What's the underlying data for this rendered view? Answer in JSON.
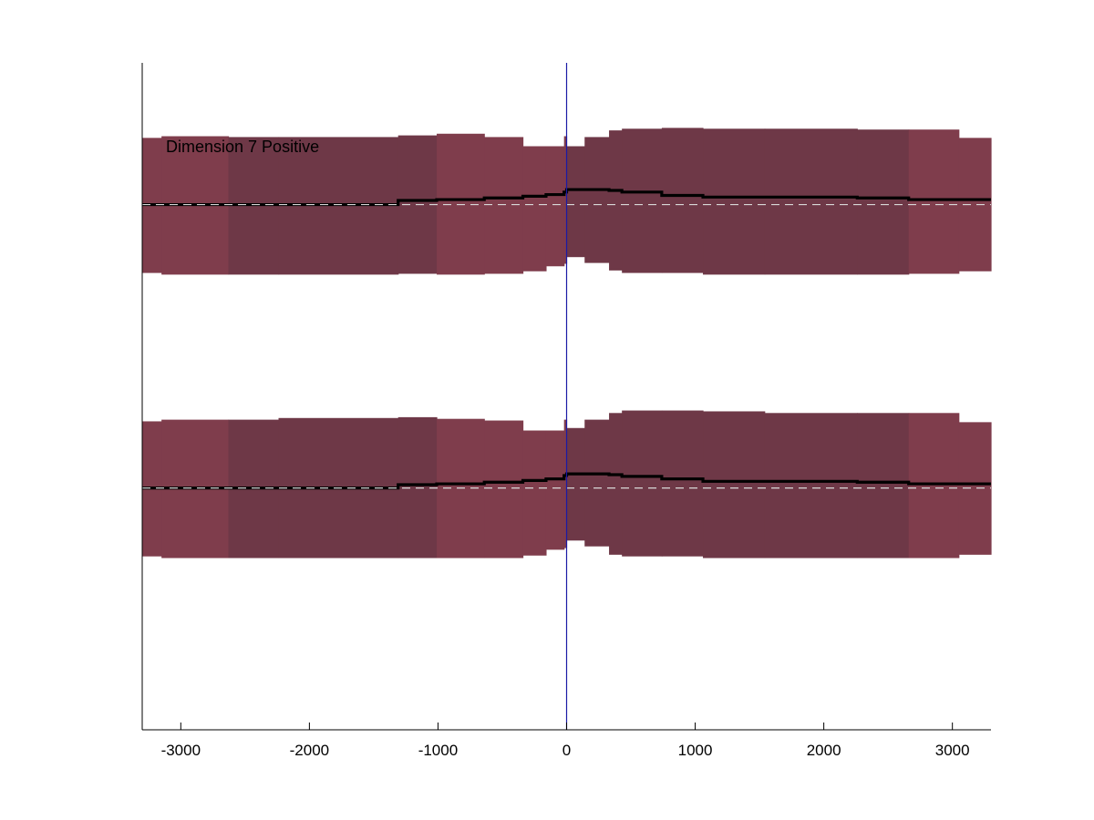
{
  "chart_data": {
    "type": "area",
    "annotation": "Dimension 7 Positive",
    "xlabel": "",
    "ylabel": "",
    "xlim": [
      -3300,
      3300
    ],
    "ylim": [
      -1.0,
      7.0
    ],
    "grid": false,
    "x_ticks": [
      -3000,
      -2000,
      -1000,
      0,
      1000,
      2000,
      3000
    ],
    "x_tick_labels": [
      "-3000",
      "-2000",
      "-1000",
      "0",
      "1000",
      "2000",
      "3000"
    ],
    "zero_line_x": 0,
    "colors": {
      "band_light": "#7f3d4c",
      "band_dark": "#6e3847",
      "mean_line": "#000000",
      "baseline_dash": "#d8d8d8",
      "zero_line": "#1a1aa6"
    },
    "edges": [
      -3300,
      -3150,
      -2630,
      -2240,
      -1310,
      -1010,
      -640,
      -340,
      -160,
      -20,
      0,
      140,
      330,
      430,
      740,
      1060,
      1540,
      2260,
      2660,
      3050,
      3300
    ],
    "bin_shade": [
      "light",
      "light",
      "dark",
      "dark",
      "dark",
      "light",
      "light",
      "light",
      "light",
      "light",
      "dark",
      "dark",
      "dark",
      "dark",
      "dark",
      "dark",
      "dark",
      "dark",
      "light",
      "light"
    ],
    "series": [
      {
        "baseline": 5.3,
        "mean": [
          5.3,
          5.3,
          5.3,
          5.3,
          5.35,
          5.36,
          5.38,
          5.4,
          5.42,
          5.45,
          5.48,
          5.48,
          5.47,
          5.45,
          5.41,
          5.39,
          5.39,
          5.38,
          5.36,
          5.36
        ],
        "upper": [
          6.1,
          6.12,
          6.11,
          6.11,
          6.13,
          6.15,
          6.11,
          6.0,
          6.0,
          6.12,
          6.0,
          6.11,
          6.19,
          6.21,
          6.22,
          6.21,
          6.21,
          6.2,
          6.2,
          6.1
        ],
        "lower": [
          4.48,
          4.46,
          4.46,
          4.46,
          4.47,
          4.46,
          4.47,
          4.5,
          4.56,
          4.59,
          4.67,
          4.6,
          4.51,
          4.48,
          4.48,
          4.46,
          4.46,
          4.46,
          4.47,
          4.5
        ]
      },
      {
        "baseline": 1.9,
        "mean": [
          1.9,
          1.9,
          1.9,
          1.9,
          1.94,
          1.95,
          1.97,
          1.99,
          2.01,
          2.05,
          2.07,
          2.07,
          2.06,
          2.04,
          2.01,
          1.98,
          1.98,
          1.97,
          1.95,
          1.95
        ],
        "upper": [
          2.7,
          2.72,
          2.72,
          2.74,
          2.75,
          2.73,
          2.71,
          2.59,
          2.59,
          2.72,
          2.62,
          2.72,
          2.8,
          2.83,
          2.83,
          2.82,
          2.8,
          2.8,
          2.8,
          2.69
        ],
        "lower": [
          1.08,
          1.06,
          1.06,
          1.06,
          1.06,
          1.06,
          1.06,
          1.09,
          1.16,
          1.18,
          1.27,
          1.2,
          1.1,
          1.08,
          1.08,
          1.06,
          1.06,
          1.06,
          1.06,
          1.1
        ]
      }
    ]
  }
}
